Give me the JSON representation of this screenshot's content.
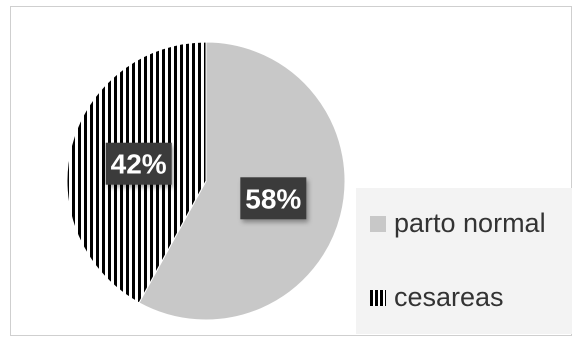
{
  "chart_data": {
    "type": "pie",
    "title": "",
    "legend_position": "bottom-right",
    "series": [
      {
        "name": "parto normal",
        "value": 58,
        "label": "58%",
        "color": "#c8c8c8",
        "fill": "solid-gray"
      },
      {
        "name": "cesareas",
        "value": 42,
        "label": "42%",
        "color": "#000000",
        "fill": "vertical-stripes"
      }
    ]
  }
}
